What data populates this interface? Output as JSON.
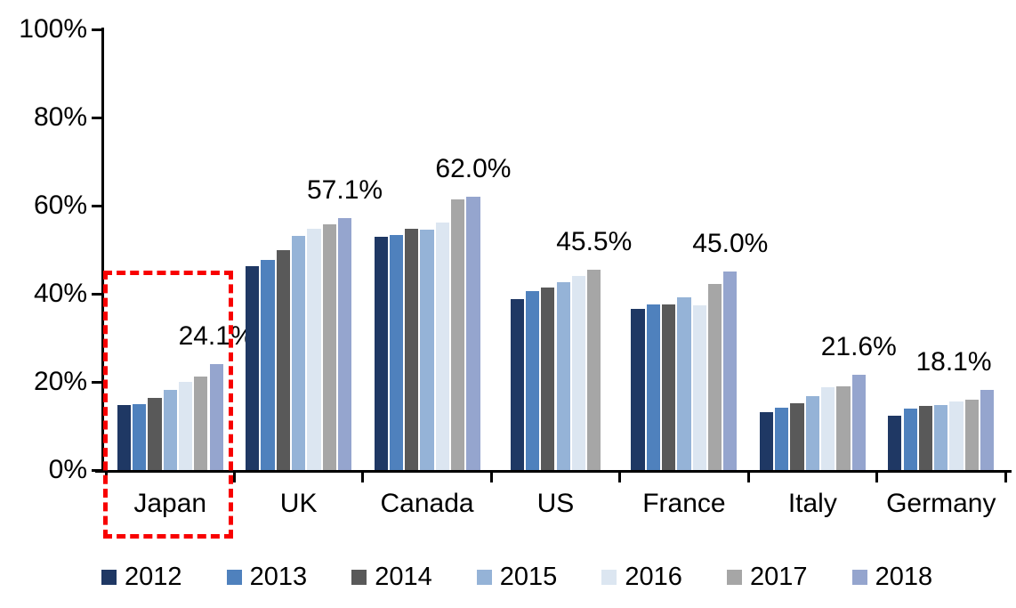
{
  "chart_data": {
    "type": "bar",
    "grid": "off",
    "categories": [
      "Japan",
      "UK",
      "Canada",
      "US",
      "France",
      "Italy",
      "Germany"
    ],
    "y_axis": {
      "tick_labels": [
        "0%",
        "20%",
        "40%",
        "60%",
        "80%",
        "100%"
      ],
      "tick_values": [
        0,
        20,
        40,
        60,
        80,
        100
      ],
      "range": [
        0,
        100
      ],
      "unit": "%"
    },
    "series": [
      {
        "name": "2012",
        "color": "#1F3864",
        "values": [
          14.7,
          46.3,
          53.0,
          38.7,
          36.5,
          13.2,
          12.4
        ]
      },
      {
        "name": "2013",
        "color": "#4F81BD",
        "values": [
          14.9,
          47.7,
          53.4,
          40.6,
          37.5,
          14.1,
          13.9
        ]
      },
      {
        "name": "2014",
        "color": "#595959",
        "values": [
          16.4,
          49.9,
          54.8,
          41.4,
          37.5,
          15.1,
          14.5
        ]
      },
      {
        "name": "2015",
        "color": "#95B3D7",
        "values": [
          18.1,
          53.2,
          54.6,
          42.6,
          39.1,
          16.8,
          14.7
        ]
      },
      {
        "name": "2016",
        "color": "#DCE6F1",
        "values": [
          19.9,
          54.7,
          56.1,
          44.1,
          37.3,
          18.8,
          15.5
        ]
      },
      {
        "name": "2017",
        "color": "#A6A6A6",
        "values": [
          21.2,
          55.7,
          61.5,
          45.5,
          42.2,
          19.0,
          15.9
        ]
      },
      {
        "name": "2018",
        "color": "#95A5CE",
        "values": [
          24.1,
          57.1,
          62.0,
          null,
          45.0,
          21.6,
          18.1
        ]
      }
    ],
    "data_labels": [
      "24.1%",
      "57.1%",
      "62.0%",
      "45.5%",
      "45.0%",
      "21.6%",
      "18.1%"
    ],
    "legend": {
      "position": "bottom",
      "entries": [
        "2012",
        "2013",
        "2014",
        "2015",
        "2016",
        "2017",
        "2018"
      ]
    },
    "highlight": {
      "category": "Japan",
      "shape": "dashed-rectangle",
      "color": "#FF0000"
    }
  }
}
